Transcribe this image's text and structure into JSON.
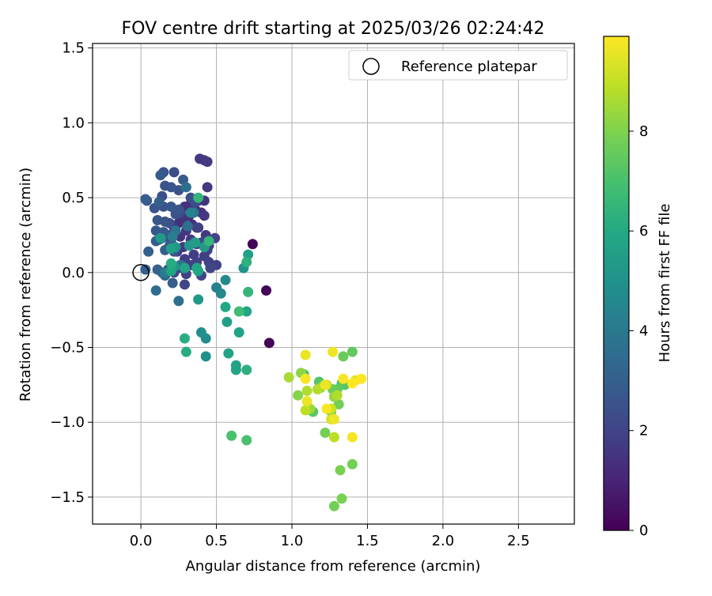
{
  "chart_data": {
    "type": "scatter",
    "title": "FOV centre drift starting at 2025/03/26 02:24:42",
    "xlabel": "Angular distance from reference (arcmin)",
    "ylabel": "Rotation from reference (arcmin)",
    "xlim": [
      -0.32,
      2.87
    ],
    "ylim": [
      -1.68,
      1.53
    ],
    "xticks": [
      0.0,
      0.5,
      1.0,
      1.5,
      2.0,
      2.5
    ],
    "xtick_labels": [
      "0.0",
      "0.5",
      "1.0",
      "1.5",
      "2.0",
      "2.5"
    ],
    "yticks": [
      1.5,
      1.0,
      0.5,
      0.0,
      -0.5,
      -1.0,
      -1.5
    ],
    "ytick_labels": [
      "1.5",
      "1.0",
      "0.5",
      "0.0",
      "−0.5",
      "−1.0",
      "−1.5"
    ],
    "grid": true,
    "legend": {
      "placement": "top-right",
      "entries": [
        "Reference platepar"
      ]
    },
    "colorbar": {
      "label": "Hours from first FF file",
      "range": [
        0,
        9.9
      ],
      "ticks": [
        0,
        2,
        4,
        6,
        8
      ],
      "colormap": "viridis"
    },
    "reference_point": {
      "x": 0.0,
      "y": 0.0,
      "label": "Reference platepar"
    },
    "series": [
      {
        "points": [
          [
            0.74,
            0.19,
            0.1
          ],
          [
            0.83,
            -0.12,
            0.1
          ],
          [
            0.85,
            -0.47,
            0.1
          ],
          [
            0.39,
            0.76,
            1.6
          ],
          [
            0.42,
            0.75,
            1.6
          ],
          [
            0.44,
            0.74,
            1.7
          ],
          [
            0.44,
            0.57,
            1.6
          ],
          [
            0.38,
            0.48,
            1.5
          ],
          [
            0.42,
            0.48,
            1.5
          ],
          [
            0.33,
            0.46,
            1.4
          ],
          [
            0.29,
            0.44,
            1.4
          ],
          [
            0.36,
            0.42,
            1.5
          ],
          [
            0.4,
            0.4,
            1.4
          ],
          [
            0.32,
            0.38,
            1.3
          ],
          [
            0.28,
            0.36,
            1.5
          ],
          [
            0.25,
            0.33,
            1.4
          ],
          [
            0.34,
            0.32,
            1.3
          ],
          [
            0.42,
            0.38,
            1.6
          ],
          [
            0.22,
            0.3,
            1.5
          ],
          [
            0.3,
            0.28,
            1.6
          ],
          [
            0.38,
            0.3,
            1.7
          ],
          [
            0.43,
            0.25,
            1.6
          ],
          [
            0.26,
            0.24,
            1.5
          ],
          [
            0.33,
            0.22,
            1.6
          ],
          [
            0.2,
            0.2,
            1.7
          ],
          [
            0.37,
            0.19,
            1.7
          ],
          [
            0.28,
            0.17,
            1.6
          ],
          [
            0.45,
            0.18,
            1.7
          ],
          [
            0.24,
            0.14,
            1.7
          ],
          [
            0.35,
            0.12,
            1.8
          ],
          [
            0.42,
            0.11,
            1.8
          ],
          [
            0.29,
            0.09,
            1.8
          ],
          [
            0.37,
            0.07,
            1.9
          ],
          [
            0.45,
            0.07,
            1.9
          ],
          [
            0.5,
            0.05,
            1.9
          ],
          [
            0.33,
            0.05,
            1.9
          ],
          [
            0.25,
            0.03,
            1.9
          ],
          [
            0.3,
            -0.01,
            1.9
          ],
          [
            0.29,
            -0.08,
            2.0
          ],
          [
            0.4,
            -0.02,
            2.0
          ],
          [
            0.44,
            0.15,
            1.9
          ],
          [
            0.49,
            0.23,
            2.0
          ],
          [
            0.18,
            0.02,
            2.0
          ],
          [
            0.22,
            0.0,
            2.1
          ],
          [
            0.37,
            0.3,
            1.9
          ],
          [
            0.4,
            0.2,
            2.2
          ],
          [
            0.46,
            0.03,
            2.1
          ],
          [
            0.26,
            0.4,
            2.2
          ],
          [
            0.22,
            0.67,
            2.4
          ],
          [
            0.15,
            0.67,
            2.5
          ],
          [
            0.13,
            0.65,
            2.8
          ],
          [
            0.16,
            0.58,
            2.6
          ],
          [
            0.2,
            0.57,
            2.6
          ],
          [
            0.25,
            0.55,
            2.5
          ],
          [
            0.28,
            0.62,
            2.8
          ],
          [
            0.33,
            0.5,
            2.4
          ],
          [
            0.14,
            0.51,
            2.4
          ],
          [
            0.12,
            0.47,
            3.0
          ],
          [
            0.04,
            0.48,
            2.7
          ],
          [
            0.03,
            0.49,
            2.9
          ],
          [
            0.09,
            0.43,
            2.6
          ],
          [
            0.15,
            0.44,
            2.5
          ],
          [
            0.2,
            0.44,
            2.7
          ],
          [
            0.23,
            0.39,
            2.5
          ],
          [
            0.11,
            0.35,
            2.6
          ],
          [
            0.16,
            0.34,
            2.6
          ],
          [
            0.19,
            0.33,
            2.5
          ],
          [
            0.1,
            0.28,
            2.7
          ],
          [
            0.15,
            0.27,
            2.8
          ],
          [
            0.18,
            0.25,
            2.6
          ],
          [
            0.12,
            0.22,
            2.7
          ],
          [
            0.1,
            0.21,
            2.9
          ],
          [
            0.14,
            0.23,
            3.0
          ],
          [
            0.19,
            0.18,
            2.9
          ],
          [
            0.05,
            0.14,
            3.0
          ],
          [
            0.16,
            0.15,
            3.0
          ],
          [
            0.22,
            0.14,
            2.7
          ],
          [
            0.2,
            0.06,
            2.9
          ],
          [
            0.27,
            0.05,
            3.0
          ],
          [
            0.11,
            0.02,
            3.0
          ],
          [
            0.14,
            0.0,
            3.2
          ],
          [
            0.03,
            0.02,
            3.0
          ],
          [
            0.16,
            -0.02,
            3.2
          ],
          [
            0.21,
            -0.07,
            2.9
          ],
          [
            0.1,
            -0.12,
            3.5
          ],
          [
            0.25,
            -0.19,
            3.6
          ],
          [
            0.36,
            0.47,
            2.4
          ],
          [
            0.25,
            0.42,
            2.6
          ],
          [
            0.35,
            0.2,
            2.7
          ],
          [
            0.3,
            0.57,
            3.6
          ],
          [
            0.33,
            0.4,
            4.4
          ],
          [
            0.21,
            0.24,
            4.2
          ],
          [
            0.31,
            0.31,
            3.6
          ],
          [
            0.23,
            0.28,
            3.9
          ],
          [
            0.35,
            0.4,
            3.9
          ],
          [
            0.16,
            0.0,
            4.1
          ],
          [
            0.26,
            0.05,
            3.8
          ],
          [
            0.5,
            -0.1,
            4.3
          ],
          [
            0.53,
            -0.14,
            4.5
          ],
          [
            0.56,
            -0.05,
            4.7
          ],
          [
            0.4,
            -0.4,
            4.9
          ],
          [
            0.43,
            -0.44,
            4.8
          ],
          [
            0.43,
            -0.56,
            4.9
          ],
          [
            0.68,
            0.03,
            5.0
          ],
          [
            0.38,
            -0.18,
            5.3
          ],
          [
            0.32,
            0.18,
            5.2
          ],
          [
            0.23,
            0.17,
            5.2
          ],
          [
            0.13,
            0.23,
            5.4
          ],
          [
            0.22,
            0.04,
            5.3
          ],
          [
            0.36,
            0.2,
            5.5
          ],
          [
            0.42,
            0.17,
            5.4
          ],
          [
            0.2,
            0.16,
            5.6
          ],
          [
            0.71,
            0.12,
            5.6
          ],
          [
            0.37,
            0.03,
            5.8
          ],
          [
            0.29,
            0.03,
            5.8
          ],
          [
            0.38,
            0.01,
            5.8
          ],
          [
            0.2,
            0.01,
            5.8
          ],
          [
            0.37,
            0.03,
            5.9
          ],
          [
            0.56,
            -0.23,
            5.9
          ],
          [
            0.57,
            -0.33,
            5.6
          ],
          [
            0.65,
            -0.4,
            5.7
          ],
          [
            0.7,
            -0.26,
            5.8
          ],
          [
            0.63,
            -0.62,
            5.7
          ],
          [
            0.63,
            -0.65,
            5.8
          ],
          [
            0.58,
            -0.54,
            5.7
          ],
          [
            0.29,
            -0.44,
            6.2
          ],
          [
            0.3,
            -0.53,
            6.1
          ],
          [
            0.2,
            0.06,
            6.1
          ],
          [
            0.38,
            0.5,
            6.5
          ],
          [
            0.45,
            0.21,
            6.5
          ],
          [
            0.7,
            0.07,
            6.3
          ],
          [
            0.71,
            -0.13,
            6.5
          ],
          [
            0.7,
            -0.65,
            6.3
          ],
          [
            0.65,
            -0.26,
            6.8
          ],
          [
            0.6,
            -1.09,
            7.0
          ],
          [
            0.7,
            -1.12,
            7.0
          ],
          [
            1.08,
            -0.68,
            7.0
          ],
          [
            1.18,
            -0.73,
            7.2
          ],
          [
            1.33,
            -0.74,
            7.1
          ],
          [
            1.35,
            -0.75,
            7.3
          ],
          [
            1.3,
            -0.78,
            7.5
          ],
          [
            1.14,
            -0.93,
            7.3
          ],
          [
            1.4,
            -0.53,
            7.5
          ],
          [
            1.34,
            -0.56,
            7.6
          ],
          [
            1.27,
            -0.78,
            7.6
          ],
          [
            1.31,
            -0.88,
            7.8
          ],
          [
            1.26,
            -0.93,
            7.8
          ],
          [
            1.22,
            -1.07,
            7.8
          ],
          [
            1.4,
            -1.28,
            7.8
          ],
          [
            1.32,
            -1.32,
            7.9
          ],
          [
            1.33,
            -1.51,
            7.9
          ],
          [
            1.28,
            -1.56,
            7.8
          ],
          [
            1.04,
            -0.82,
            8.1
          ],
          [
            1.06,
            -0.67,
            8.2
          ],
          [
            1.19,
            -0.77,
            8.4
          ],
          [
            1.28,
            -0.83,
            8.3
          ],
          [
            1.12,
            -0.91,
            8.4
          ],
          [
            0.98,
            -0.7,
            8.6
          ],
          [
            1.1,
            -0.79,
            8.7
          ],
          [
            1.17,
            -0.78,
            8.8
          ],
          [
            1.09,
            -0.92,
            8.9
          ],
          [
            1.23,
            -0.75,
            9.0
          ],
          [
            1.26,
            -0.91,
            9.1
          ],
          [
            1.26,
            -0.98,
            9.3
          ],
          [
            1.28,
            -1.1,
            8.9
          ],
          [
            1.3,
            -0.82,
            8.7
          ],
          [
            1.09,
            -0.55,
            9.6
          ],
          [
            1.27,
            -0.53,
            9.7
          ],
          [
            1.09,
            -0.71,
            9.8
          ],
          [
            1.34,
            -0.71,
            9.8
          ],
          [
            1.4,
            -0.74,
            9.9
          ],
          [
            1.46,
            -0.71,
            9.9
          ],
          [
            1.42,
            -0.72,
            9.5
          ],
          [
            1.22,
            -0.75,
            9.6
          ],
          [
            1.1,
            -0.86,
            9.6
          ],
          [
            1.23,
            -0.91,
            9.8
          ],
          [
            1.28,
            -0.98,
            9.7
          ],
          [
            1.4,
            -1.1,
            9.8
          ]
        ]
      }
    ]
  }
}
